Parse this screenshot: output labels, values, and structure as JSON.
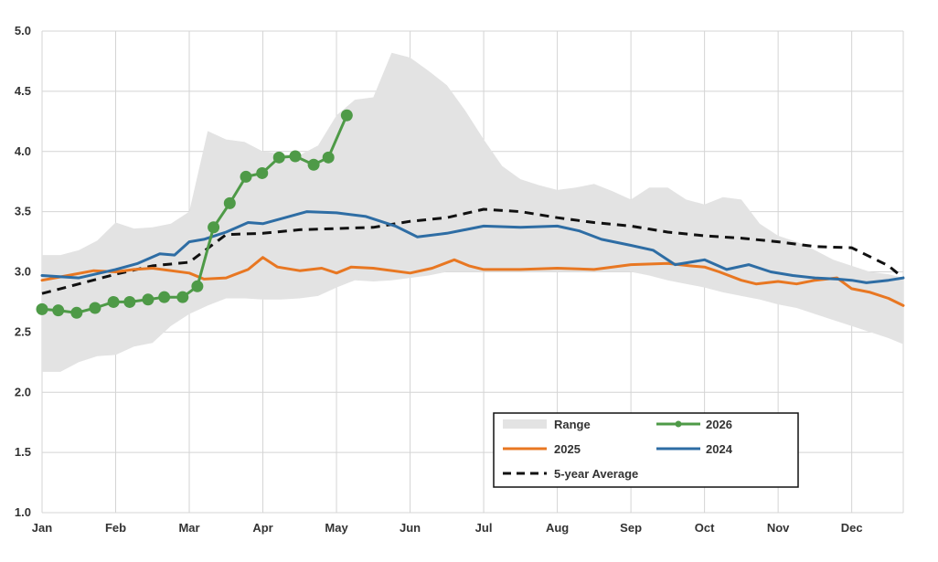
{
  "chart_data": {
    "type": "line",
    "x_axis": {
      "ticks": [
        "Jan",
        "Feb",
        "Mar",
        "Apr",
        "May",
        "Jun",
        "Jul",
        "Aug",
        "Sep",
        "Oct",
        "Nov",
        "Dec"
      ],
      "range": [
        0,
        11.7
      ]
    },
    "y_axis": {
      "ticks": [
        "1.0",
        "1.5",
        "2.0",
        "2.5",
        "3.0",
        "3.5",
        "4.0",
        "4.5",
        "5.0"
      ],
      "range": [
        1.0,
        5.0
      ]
    },
    "grid": true,
    "legend_position": "bottom-right",
    "range_band": {
      "name": "Range",
      "x": [
        0,
        0.25,
        0.5,
        0.75,
        1.0,
        1.25,
        1.5,
        1.75,
        2.0,
        2.25,
        2.5,
        2.75,
        3.0,
        3.25,
        3.5,
        3.75,
        4.0,
        4.25,
        4.5,
        4.75,
        5.0,
        5.25,
        5.5,
        5.75,
        6.0,
        6.25,
        6.5,
        6.75,
        7.0,
        7.25,
        7.5,
        7.75,
        8.0,
        8.25,
        8.5,
        8.75,
        9.0,
        9.25,
        9.5,
        9.75,
        10.0,
        10.25,
        10.5,
        10.75,
        11.0,
        11.25,
        11.5,
        11.7
      ],
      "low": [
        2.17,
        2.17,
        2.25,
        2.3,
        2.31,
        2.38,
        2.41,
        2.55,
        2.65,
        2.72,
        2.78,
        2.78,
        2.77,
        2.77,
        2.78,
        2.8,
        2.87,
        2.93,
        2.92,
        2.93,
        2.95,
        2.97,
        3.0,
        3.0,
        3.0,
        3.0,
        3.0,
        3.0,
        3.0,
        3.0,
        3.0,
        3.0,
        3.0,
        2.97,
        2.93,
        2.9,
        2.87,
        2.83,
        2.8,
        2.77,
        2.73,
        2.7,
        2.65,
        2.6,
        2.55,
        2.5,
        2.45,
        2.4
      ],
      "high": [
        3.14,
        3.14,
        3.18,
        3.26,
        3.41,
        3.36,
        3.37,
        3.4,
        3.5,
        4.17,
        4.1,
        4.08,
        4.0,
        3.98,
        3.97,
        4.05,
        4.3,
        4.43,
        4.45,
        4.82,
        4.78,
        4.67,
        4.55,
        4.34,
        4.1,
        3.88,
        3.77,
        3.72,
        3.68,
        3.7,
        3.73,
        3.67,
        3.6,
        3.7,
        3.7,
        3.6,
        3.56,
        3.62,
        3.6,
        3.4,
        3.3,
        3.25,
        3.18,
        3.1,
        3.05,
        3.0,
        2.98,
        2.95
      ]
    },
    "series": [
      {
        "name": "5-year Average",
        "color": "#111111",
        "x": [
          0,
          0.5,
          1.0,
          1.5,
          2.0,
          2.5,
          3.0,
          3.5,
          4.0,
          4.5,
          5.0,
          5.5,
          6.0,
          6.5,
          7.0,
          7.5,
          8.0,
          8.5,
          9.0,
          9.5,
          10.0,
          10.5,
          11.0,
          11.5,
          11.7
        ],
        "values": [
          2.82,
          2.9,
          2.98,
          3.05,
          3.08,
          3.31,
          3.32,
          3.35,
          3.36,
          3.37,
          3.42,
          3.45,
          3.52,
          3.5,
          3.45,
          3.41,
          3.38,
          3.33,
          3.3,
          3.28,
          3.25,
          3.21,
          3.2,
          3.05,
          2.95
        ]
      },
      {
        "name": "2025",
        "color": "#E87722",
        "x": [
          0,
          0.35,
          0.7,
          1.0,
          1.25,
          1.5,
          2.0,
          2.2,
          2.5,
          2.8,
          3.0,
          3.2,
          3.5,
          3.8,
          4.0,
          4.2,
          4.5,
          5.0,
          5.3,
          5.6,
          5.8,
          6.0,
          6.5,
          7.0,
          7.5,
          8.0,
          8.5,
          8.8,
          9.0,
          9.2,
          9.5,
          9.7,
          10.0,
          10.25,
          10.5,
          10.8,
          11.0,
          11.25,
          11.5,
          11.7
        ],
        "values": [
          2.93,
          2.97,
          3.01,
          3.0,
          3.02,
          3.03,
          2.99,
          2.94,
          2.95,
          3.02,
          3.12,
          3.04,
          3.01,
          3.03,
          2.99,
          3.04,
          3.03,
          2.99,
          3.03,
          3.1,
          3.05,
          3.02,
          3.02,
          3.03,
          3.02,
          3.06,
          3.07,
          3.05,
          3.04,
          3.0,
          2.93,
          2.9,
          2.92,
          2.9,
          2.93,
          2.95,
          2.86,
          2.83,
          2.78,
          2.72
        ]
      },
      {
        "name": "2024",
        "color": "#2E6DA4",
        "x": [
          0,
          0.5,
          1.0,
          1.3,
          1.6,
          1.8,
          2.0,
          2.2,
          2.5,
          2.8,
          3.0,
          3.3,
          3.6,
          4.0,
          4.4,
          4.8,
          5.1,
          5.5,
          6.0,
          6.5,
          7.0,
          7.3,
          7.6,
          8.0,
          8.3,
          8.6,
          8.8,
          9.0,
          9.3,
          9.6,
          9.9,
          10.2,
          10.5,
          10.8,
          11.0,
          11.2,
          11.5,
          11.7
        ],
        "values": [
          2.97,
          2.95,
          3.02,
          3.07,
          3.15,
          3.14,
          3.25,
          3.27,
          3.33,
          3.41,
          3.4,
          3.45,
          3.5,
          3.49,
          3.46,
          3.38,
          3.29,
          3.32,
          3.38,
          3.37,
          3.38,
          3.34,
          3.27,
          3.22,
          3.18,
          3.06,
          3.08,
          3.1,
          3.02,
          3.06,
          3.0,
          2.97,
          2.95,
          2.94,
          2.93,
          2.91,
          2.93,
          2.95
        ]
      },
      {
        "name": "2026",
        "color": "#4E9A47",
        "x": [
          0,
          0.22,
          0.47,
          0.72,
          0.97,
          1.19,
          1.44,
          1.66,
          1.91,
          2.11,
          2.33,
          2.55,
          2.77,
          2.99,
          3.22,
          3.44,
          3.69,
          3.89,
          4.14
        ],
        "values": [
          2.69,
          2.68,
          2.66,
          2.7,
          2.75,
          2.75,
          2.77,
          2.79,
          2.79,
          2.88,
          3.37,
          3.57,
          3.79,
          3.82,
          3.95,
          3.96,
          3.89,
          3.95,
          4.3
        ]
      }
    ],
    "legend": {
      "range_label": "Range",
      "s2026_label": "2026",
      "s2025_label": "2025",
      "s2024_label": "2024",
      "avg_label": "5-year Average"
    }
  }
}
